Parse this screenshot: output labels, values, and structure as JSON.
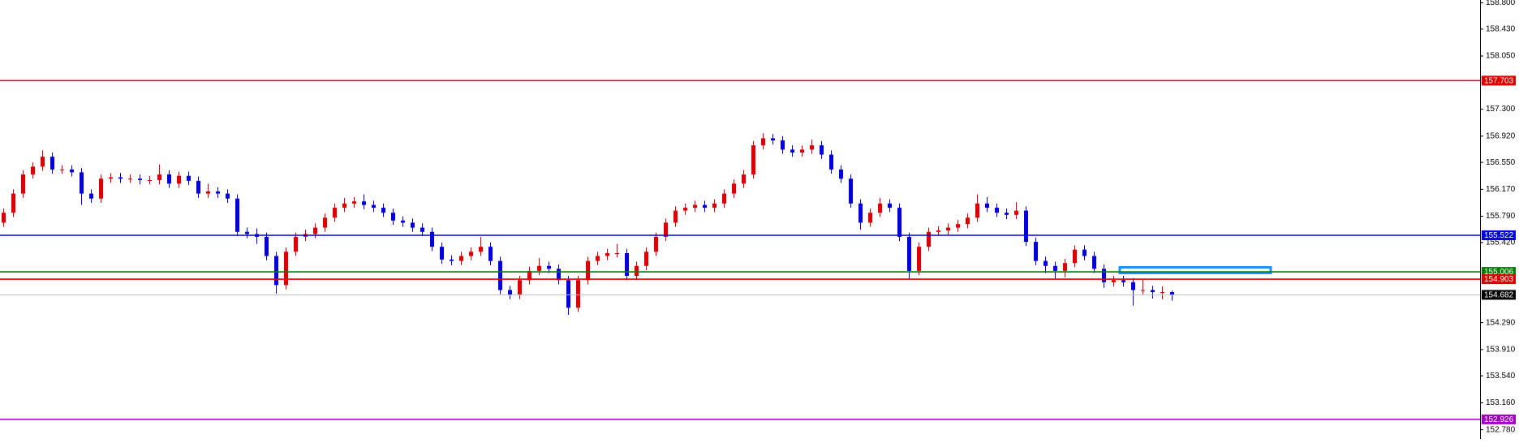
{
  "chart_data": {
    "type": "candlestick",
    "ylim": [
      152.65,
      158.84
    ],
    "yticks": [
      {
        "value": 158.8,
        "label": "158.800"
      },
      {
        "value": 158.43,
        "label": "158.430"
      },
      {
        "value": 158.05,
        "label": "158.050"
      },
      {
        "value": 157.3,
        "label": "157.300"
      },
      {
        "value": 156.92,
        "label": "156.920"
      },
      {
        "value": 156.55,
        "label": "156.550"
      },
      {
        "value": 156.17,
        "label": "156.170"
      },
      {
        "value": 155.79,
        "label": "155.790"
      },
      {
        "value": 155.42,
        "label": "155.420"
      },
      {
        "value": 154.29,
        "label": "154.290"
      },
      {
        "value": 153.91,
        "label": "153.910"
      },
      {
        "value": 153.54,
        "label": "153.540"
      },
      {
        "value": 153.16,
        "label": "153.160"
      },
      {
        "value": 152.78,
        "label": "152.780"
      }
    ],
    "up_color": "#e00000",
    "down_color": "#0000e0",
    "levels": [
      {
        "value": 157.703,
        "color": "#e00000"
      },
      {
        "value": 155.522,
        "color": "#0000e0"
      },
      {
        "value": 155.006,
        "color": "#008000"
      },
      {
        "value": 154.903,
        "color": "#e00000"
      },
      {
        "value": 154.682,
        "color": "#000000",
        "line_color": "#c0c0c0"
      },
      {
        "value": 152.926,
        "color": "#a000c0"
      }
    ],
    "zone": {
      "ylim": [
        154.99,
        155.07
      ],
      "color": "#1e90ff"
    },
    "ohlc": [
      [
        155.7,
        155.9,
        155.64,
        155.84
      ],
      [
        155.84,
        156.17,
        155.78,
        156.11
      ],
      [
        156.11,
        156.44,
        156.05,
        156.38
      ],
      [
        156.38,
        156.55,
        156.32,
        156.49
      ],
      [
        156.49,
        156.72,
        156.43,
        156.63
      ],
      [
        156.63,
        156.69,
        156.39,
        156.45
      ],
      [
        156.45,
        156.51,
        156.39,
        156.45
      ],
      [
        156.45,
        156.51,
        156.35,
        156.41
      ],
      [
        156.41,
        156.47,
        155.95,
        156.11
      ],
      [
        156.11,
        156.17,
        155.98,
        156.04
      ],
      [
        156.04,
        156.38,
        155.98,
        156.32
      ],
      [
        156.32,
        156.4,
        156.26,
        156.34
      ],
      [
        156.34,
        156.4,
        156.26,
        156.32
      ],
      [
        156.32,
        156.38,
        156.26,
        156.32
      ],
      [
        156.32,
        156.38,
        156.24,
        156.3
      ],
      [
        156.3,
        156.36,
        156.24,
        156.3
      ],
      [
        156.3,
        156.52,
        156.24,
        156.38
      ],
      [
        156.38,
        156.44,
        156.19,
        156.25
      ],
      [
        156.25,
        156.42,
        156.19,
        156.36
      ],
      [
        156.36,
        156.42,
        156.23,
        156.29
      ],
      [
        156.29,
        156.35,
        156.05,
        156.11
      ],
      [
        156.11,
        156.25,
        156.05,
        156.14
      ],
      [
        156.14,
        156.2,
        156.05,
        156.11
      ],
      [
        156.11,
        156.17,
        155.98,
        156.04
      ],
      [
        156.04,
        156.1,
        155.51,
        155.57
      ],
      [
        155.57,
        155.63,
        155.48,
        155.54
      ],
      [
        155.54,
        155.62,
        155.4,
        155.5
      ],
      [
        155.5,
        155.56,
        155.17,
        155.23
      ],
      [
        155.23,
        155.29,
        154.7,
        154.82
      ],
      [
        154.82,
        155.35,
        154.76,
        155.29
      ],
      [
        155.29,
        155.56,
        155.23,
        155.5
      ],
      [
        155.5,
        155.6,
        155.44,
        155.54
      ],
      [
        155.54,
        155.69,
        155.48,
        155.63
      ],
      [
        155.63,
        155.83,
        155.57,
        155.77
      ],
      [
        155.77,
        155.97,
        155.71,
        155.91
      ],
      [
        155.91,
        156.05,
        155.85,
        155.97
      ],
      [
        155.97,
        156.06,
        155.91,
        156.0
      ],
      [
        156.0,
        156.1,
        155.89,
        155.95
      ],
      [
        155.95,
        156.01,
        155.85,
        155.91
      ],
      [
        155.91,
        155.97,
        155.78,
        155.84
      ],
      [
        155.84,
        155.9,
        155.67,
        155.73
      ],
      [
        155.73,
        155.79,
        155.64,
        155.7
      ],
      [
        155.7,
        155.76,
        155.57,
        155.63
      ],
      [
        155.63,
        155.69,
        155.51,
        155.57
      ],
      [
        155.57,
        155.63,
        155.3,
        155.36
      ],
      [
        155.36,
        155.42,
        155.12,
        155.18
      ],
      [
        155.18,
        155.24,
        155.1,
        155.16
      ],
      [
        155.16,
        155.29,
        155.1,
        155.23
      ],
      [
        155.23,
        155.35,
        155.17,
        155.29
      ],
      [
        155.29,
        155.5,
        155.23,
        155.36
      ],
      [
        155.36,
        155.42,
        155.1,
        155.16
      ],
      [
        155.16,
        155.22,
        154.69,
        154.75
      ],
      [
        154.75,
        154.81,
        154.62,
        154.68
      ],
      [
        154.68,
        154.95,
        154.62,
        154.89
      ],
      [
        154.89,
        155.08,
        154.83,
        155.02
      ],
      [
        155.02,
        155.2,
        154.96,
        155.09
      ],
      [
        155.09,
        155.15,
        154.99,
        155.05
      ],
      [
        155.05,
        155.11,
        154.83,
        154.89
      ],
      [
        154.89,
        154.95,
        154.4,
        154.5
      ],
      [
        154.5,
        154.95,
        154.44,
        154.89
      ],
      [
        154.89,
        155.22,
        154.83,
        155.16
      ],
      [
        155.16,
        155.29,
        155.1,
        155.23
      ],
      [
        155.23,
        155.33,
        155.17,
        155.27
      ],
      [
        155.27,
        155.4,
        155.21,
        155.27
      ],
      [
        155.27,
        155.33,
        154.89,
        154.95
      ],
      [
        154.95,
        155.15,
        154.89,
        155.09
      ],
      [
        155.09,
        155.35,
        155.03,
        155.29
      ],
      [
        155.29,
        155.56,
        155.23,
        155.5
      ],
      [
        155.5,
        155.76,
        155.44,
        155.7
      ],
      [
        155.7,
        155.93,
        155.64,
        155.87
      ],
      [
        155.87,
        155.97,
        155.81,
        155.91
      ],
      [
        155.91,
        156.01,
        155.85,
        155.95
      ],
      [
        155.95,
        156.01,
        155.85,
        155.91
      ],
      [
        155.91,
        156.03,
        155.85,
        155.97
      ],
      [
        155.97,
        156.17,
        155.91,
        156.11
      ],
      [
        156.11,
        156.31,
        156.05,
        156.25
      ],
      [
        156.25,
        156.44,
        156.19,
        156.38
      ],
      [
        156.38,
        156.85,
        156.32,
        156.79
      ],
      [
        156.79,
        156.96,
        156.73,
        156.89
      ],
      [
        156.89,
        156.95,
        156.8,
        156.86
      ],
      [
        156.86,
        156.92,
        156.67,
        156.73
      ],
      [
        156.73,
        156.79,
        156.63,
        156.69
      ],
      [
        156.69,
        156.79,
        156.63,
        156.73
      ],
      [
        156.73,
        156.87,
        156.67,
        156.79
      ],
      [
        156.79,
        156.85,
        156.6,
        156.66
      ],
      [
        156.66,
        156.72,
        156.39,
        156.45
      ],
      [
        156.45,
        156.51,
        156.26,
        156.32
      ],
      [
        156.32,
        156.38,
        155.91,
        155.97
      ],
      [
        155.97,
        156.03,
        155.6,
        155.7
      ],
      [
        155.7,
        155.9,
        155.64,
        155.84
      ],
      [
        155.84,
        156.05,
        155.78,
        155.97
      ],
      [
        155.97,
        156.03,
        155.85,
        155.91
      ],
      [
        155.91,
        155.97,
        155.44,
        155.5
      ],
      [
        155.5,
        155.56,
        154.9,
        155.02
      ],
      [
        155.02,
        155.42,
        154.96,
        155.36
      ],
      [
        155.36,
        155.63,
        155.3,
        155.57
      ],
      [
        155.57,
        155.65,
        155.51,
        155.59
      ],
      [
        155.59,
        155.69,
        155.53,
        155.63
      ],
      [
        155.63,
        155.74,
        155.57,
        155.68
      ],
      [
        155.68,
        155.83,
        155.62,
        155.77
      ],
      [
        155.77,
        156.1,
        155.71,
        155.97
      ],
      [
        155.97,
        156.06,
        155.85,
        155.91
      ],
      [
        155.91,
        155.97,
        155.78,
        155.84
      ],
      [
        155.84,
        155.9,
        155.75,
        155.81
      ],
      [
        155.81,
        155.99,
        155.75,
        155.87
      ],
      [
        155.87,
        155.93,
        155.37,
        155.43
      ],
      [
        155.43,
        155.49,
        155.1,
        155.16
      ],
      [
        155.16,
        155.22,
        154.99,
        155.09
      ],
      [
        155.09,
        155.15,
        154.9,
        155.02
      ],
      [
        155.02,
        155.19,
        154.93,
        155.13
      ],
      [
        155.13,
        155.38,
        155.07,
        155.32
      ],
      [
        155.32,
        155.38,
        155.17,
        155.23
      ],
      [
        155.23,
        155.29,
        154.99,
        155.05
      ],
      [
        155.05,
        155.11,
        154.78,
        154.86
      ],
      [
        154.86,
        154.95,
        154.8,
        154.89
      ],
      [
        154.89,
        154.95,
        154.8,
        154.86
      ],
      [
        154.86,
        154.92,
        154.53,
        154.75
      ],
      [
        154.75,
        154.9,
        154.69,
        154.75
      ],
      [
        154.75,
        154.81,
        154.63,
        154.72
      ],
      [
        154.72,
        154.8,
        154.62,
        154.72
      ],
      [
        154.72,
        154.74,
        154.6,
        154.68
      ]
    ]
  }
}
